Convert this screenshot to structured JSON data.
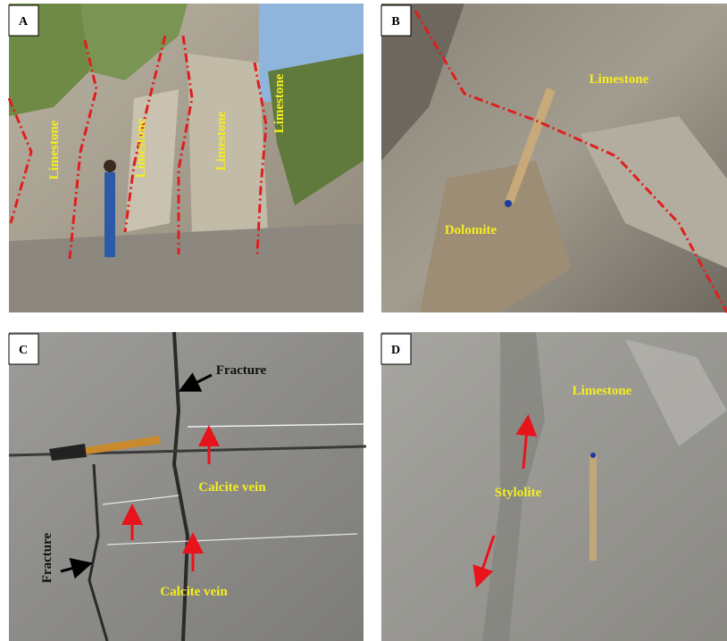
{
  "panels": [
    {
      "letter": "A",
      "labels": [
        "Limestone",
        "Limestone",
        "Limestone",
        "Limestone"
      ]
    },
    {
      "letter": "B",
      "labels": [
        "Limestone",
        "Dolomite"
      ]
    },
    {
      "letter": "C",
      "labels": [
        "Fracture",
        "Calcite vein",
        "Calcite vein",
        "Fracture"
      ]
    },
    {
      "letter": "D",
      "labels": [
        "Limestone",
        "Stylolite"
      ]
    }
  ]
}
